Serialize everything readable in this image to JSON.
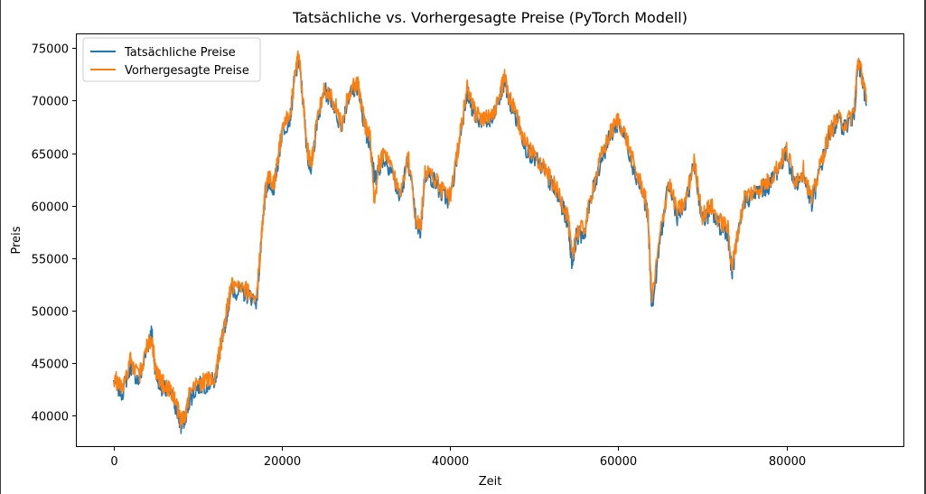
{
  "chart_data": {
    "type": "line",
    "title": "Tatsächliche vs. Vorhergesagte Preise (PyTorch Modell)",
    "xlabel": "Zeit",
    "ylabel": "Preis",
    "xlim": [
      -4500,
      94000
    ],
    "ylim": [
      37000,
      76400
    ],
    "xticks": [
      0,
      20000,
      40000,
      60000,
      80000
    ],
    "yticks": [
      40000,
      45000,
      50000,
      55000,
      60000,
      65000,
      70000,
      75000
    ],
    "legend_position": "top-left",
    "series": [
      {
        "name": "Tatsächliche Preise",
        "color": "#1f77b4",
        "x": [
          0,
          1000,
          2000,
          3000,
          4000,
          4500,
          5000,
          5500,
          6000,
          7000,
          7500,
          8000,
          8500,
          9000,
          10000,
          11000,
          12000,
          12500,
          13000,
          13500,
          14000,
          15000,
          16000,
          17000,
          17500,
          18000,
          18500,
          19000,
          19500,
          20000,
          21000,
          21500,
          22000,
          22500,
          23000,
          23500,
          24000,
          25000,
          26000,
          27000,
          28000,
          29000,
          29500,
          30000,
          30500,
          31000,
          31500,
          32000,
          33000,
          34000,
          35000,
          36000,
          36500,
          37000,
          38000,
          39000,
          40000,
          41000,
          42000,
          42500,
          43000,
          44000,
          45000,
          46000,
          46500,
          47000,
          48000,
          49000,
          50000,
          51000,
          52000,
          53000,
          54000,
          54500,
          55000,
          56000,
          57000,
          58000,
          59000,
          60000,
          61000,
          62000,
          63000,
          63500,
          64000,
          65000,
          66000,
          67000,
          68000,
          69000,
          70000,
          71000,
          72000,
          73000,
          73500,
          74000,
          75000,
          76000,
          77000,
          78000,
          79000,
          80000,
          81000,
          82000,
          83000,
          84000,
          85000,
          86000,
          87000,
          88000,
          88500,
          89000,
          89500
        ],
        "y": [
          43200,
          42200,
          44800,
          43200,
          46500,
          48000,
          44000,
          43000,
          42500,
          41800,
          40500,
          39000,
          39800,
          41500,
          42800,
          43000,
          43300,
          45500,
          47500,
          50000,
          52000,
          51800,
          51500,
          51000,
          56000,
          61000,
          62500,
          61500,
          64000,
          67000,
          68500,
          72000,
          74000,
          70000,
          65000,
          63500,
          67000,
          71000,
          70000,
          67500,
          70500,
          71500,
          69000,
          67000,
          66000,
          62500,
          63500,
          64500,
          63500,
          60500,
          64500,
          58000,
          57500,
          63000,
          62500,
          61000,
          60500,
          65500,
          71000,
          69500,
          68500,
          68000,
          68000,
          70500,
          72000,
          70000,
          68000,
          65500,
          64500,
          63500,
          62000,
          60500,
          58500,
          54500,
          57000,
          57500,
          61500,
          64500,
          66500,
          68000,
          66000,
          63000,
          61000,
          59000,
          50000,
          57000,
          62000,
          59000,
          60000,
          64000,
          58500,
          59500,
          58000,
          57500,
          53500,
          56000,
          60500,
          61000,
          61500,
          62000,
          63500,
          65000,
          62000,
          63000,
          60000,
          63500,
          66500,
          68000,
          67500,
          68500,
          73500,
          72000,
          69500
        ]
      },
      {
        "name": "Vorhergesagte Preise",
        "color": "#ff7f0e",
        "x": [
          0,
          1000,
          2000,
          3000,
          4000,
          4500,
          5000,
          5500,
          6000,
          7000,
          7500,
          8000,
          8500,
          9000,
          10000,
          11000,
          12000,
          12500,
          13000,
          13500,
          14000,
          15000,
          16000,
          17000,
          17500,
          18000,
          18500,
          19000,
          19500,
          20000,
          21000,
          21500,
          22000,
          22500,
          23000,
          23500,
          24000,
          25000,
          26000,
          27000,
          28000,
          29000,
          29500,
          30000,
          30500,
          31000,
          31500,
          32000,
          33000,
          34000,
          35000,
          36000,
          36500,
          37000,
          38000,
          39000,
          40000,
          41000,
          42000,
          42500,
          43000,
          44000,
          45000,
          46000,
          46500,
          47000,
          48000,
          49000,
          50000,
          51000,
          52000,
          53000,
          54000,
          54500,
          55000,
          56000,
          57000,
          58000,
          59000,
          60000,
          61000,
          62000,
          63000,
          63500,
          64000,
          65000,
          66000,
          67000,
          68000,
          69000,
          70000,
          71000,
          72000,
          73000,
          73500,
          74000,
          75000,
          76000,
          77000,
          78000,
          79000,
          80000,
          81000,
          82000,
          83000,
          84000,
          85000,
          86000,
          87000,
          88000,
          88500,
          89000,
          89500
        ],
        "y": [
          43600,
          42600,
          45200,
          43600,
          46800,
          47500,
          44300,
          43400,
          42900,
          42200,
          40900,
          39500,
          40200,
          41900,
          43100,
          43300,
          43600,
          45800,
          47700,
          50300,
          52300,
          52100,
          51800,
          51300,
          56400,
          61300,
          62900,
          61900,
          64300,
          67300,
          68800,
          72300,
          74300,
          70300,
          65400,
          63900,
          67300,
          71300,
          70300,
          67900,
          70800,
          71800,
          69300,
          67400,
          66400,
          59700,
          63900,
          64800,
          63900,
          61000,
          64800,
          58500,
          58000,
          63300,
          62900,
          61400,
          60900,
          65800,
          71300,
          69800,
          68800,
          68300,
          68300,
          70800,
          72300,
          70300,
          68300,
          65800,
          64900,
          63900,
          62400,
          61000,
          59000,
          55000,
          57400,
          57900,
          61800,
          64800,
          66800,
          68300,
          66300,
          63400,
          61400,
          59400,
          51000,
          57400,
          62300,
          59400,
          60400,
          64300,
          59000,
          60000,
          58500,
          58000,
          54000,
          56400,
          60800,
          61300,
          61800,
          62400,
          63800,
          65300,
          62400,
          63400,
          60500,
          63800,
          66800,
          68300,
          67800,
          68800,
          74000,
          72300,
          69800
        ]
      }
    ]
  }
}
